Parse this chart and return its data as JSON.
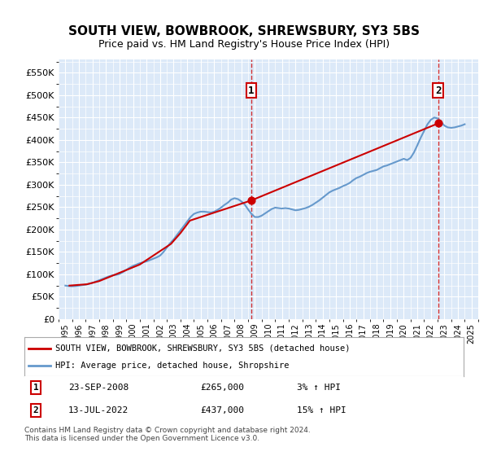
{
  "title": "SOUTH VIEW, BOWBROOK, SHREWSBURY, SY3 5BS",
  "subtitle": "Price paid vs. HM Land Registry's House Price Index (HPI)",
  "legend_line1": "SOUTH VIEW, BOWBROOK, SHREWSBURY, SY3 5BS (detached house)",
  "legend_line2": "HPI: Average price, detached house, Shropshire",
  "footer": "Contains HM Land Registry data © Crown copyright and database right 2024.\nThis data is licensed under the Open Government Licence v3.0.",
  "annotation1": {
    "label": "1",
    "date": "23-SEP-2008",
    "price": "£265,000",
    "hpi": "3% ↑ HPI",
    "x": 2008.73
  },
  "annotation2": {
    "label": "2",
    "date": "13-JUL-2022",
    "price": "£437,000",
    "hpi": "15% ↑ HPI",
    "x": 2022.54
  },
  "ylim": [
    0,
    580000
  ],
  "xlim": [
    1994.5,
    2025.5
  ],
  "yticks": [
    0,
    50000,
    100000,
    150000,
    200000,
    250000,
    300000,
    350000,
    400000,
    450000,
    500000,
    550000
  ],
  "ytick_labels": [
    "£0",
    "£50K",
    "£100K",
    "£150K",
    "£200K",
    "£250K",
    "£300K",
    "£350K",
    "£400K",
    "£450K",
    "£500K",
    "£550K"
  ],
  "xticks": [
    1995,
    1996,
    1997,
    1998,
    1999,
    2000,
    2001,
    2002,
    2003,
    2004,
    2005,
    2006,
    2007,
    2008,
    2009,
    2010,
    2011,
    2012,
    2013,
    2014,
    2015,
    2016,
    2017,
    2018,
    2019,
    2020,
    2021,
    2022,
    2023,
    2024,
    2025
  ],
  "bg_color": "#dce9f8",
  "plot_bg": "#dce9f8",
  "grid_color": "#ffffff",
  "red_line_color": "#cc0000",
  "blue_line_color": "#6699cc",
  "hpi_data": {
    "years": [
      1995.0,
      1995.25,
      1995.5,
      1995.75,
      1996.0,
      1996.25,
      1996.5,
      1996.75,
      1997.0,
      1997.25,
      1997.5,
      1997.75,
      1998.0,
      1998.25,
      1998.5,
      1998.75,
      1999.0,
      1999.25,
      1999.5,
      1999.75,
      2000.0,
      2000.25,
      2000.5,
      2000.75,
      2001.0,
      2001.25,
      2001.5,
      2001.75,
      2002.0,
      2002.25,
      2002.5,
      2002.75,
      2003.0,
      2003.25,
      2003.5,
      2003.75,
      2004.0,
      2004.25,
      2004.5,
      2004.75,
      2005.0,
      2005.25,
      2005.5,
      2005.75,
      2006.0,
      2006.25,
      2006.5,
      2006.75,
      2007.0,
      2007.25,
      2007.5,
      2007.75,
      2008.0,
      2008.25,
      2008.5,
      2008.75,
      2009.0,
      2009.25,
      2009.5,
      2009.75,
      2010.0,
      2010.25,
      2010.5,
      2010.75,
      2011.0,
      2011.25,
      2011.5,
      2011.75,
      2012.0,
      2012.25,
      2012.5,
      2012.75,
      2013.0,
      2013.25,
      2013.5,
      2013.75,
      2014.0,
      2014.25,
      2014.5,
      2014.75,
      2015.0,
      2015.25,
      2015.5,
      2015.75,
      2016.0,
      2016.25,
      2016.5,
      2016.75,
      2017.0,
      2017.25,
      2017.5,
      2017.75,
      2018.0,
      2018.25,
      2018.5,
      2018.75,
      2019.0,
      2019.25,
      2019.5,
      2019.75,
      2020.0,
      2020.25,
      2020.5,
      2020.75,
      2021.0,
      2021.25,
      2021.5,
      2021.75,
      2022.0,
      2022.25,
      2022.5,
      2022.75,
      2023.0,
      2023.25,
      2023.5,
      2023.75,
      2024.0,
      2024.25,
      2024.5
    ],
    "values": [
      75000,
      74000,
      73500,
      74000,
      75000,
      76000,
      77000,
      79000,
      81000,
      84000,
      87000,
      90000,
      93000,
      96000,
      98000,
      99000,
      101000,
      105000,
      110000,
      115000,
      119000,
      122000,
      125000,
      127000,
      129000,
      132000,
      135000,
      138000,
      142000,
      150000,
      160000,
      170000,
      178000,
      188000,
      198000,
      208000,
      218000,
      228000,
      235000,
      238000,
      240000,
      240000,
      239000,
      238000,
      240000,
      244000,
      249000,
      255000,
      260000,
      267000,
      270000,
      268000,
      263000,
      256000,
      245000,
      235000,
      228000,
      228000,
      231000,
      236000,
      241000,
      246000,
      249000,
      248000,
      247000,
      248000,
      247000,
      245000,
      243000,
      244000,
      246000,
      248000,
      251000,
      255000,
      260000,
      265000,
      271000,
      277000,
      283000,
      287000,
      290000,
      293000,
      297000,
      300000,
      304000,
      310000,
      315000,
      318000,
      322000,
      326000,
      329000,
      331000,
      333000,
      337000,
      341000,
      343000,
      346000,
      349000,
      352000,
      355000,
      358000,
      355000,
      360000,
      372000,
      388000,
      405000,
      420000,
      435000,
      445000,
      450000,
      448000,
      440000,
      432000,
      428000,
      427000,
      428000,
      430000,
      432000,
      435000
    ]
  },
  "property_data": {
    "years": [
      1995.3,
      1996.6,
      1997.5,
      2000.5,
      2002.8,
      2003.5,
      2004.2,
      2008.73,
      2022.54
    ],
    "values": [
      75000,
      78000,
      85000,
      122000,
      168000,
      192000,
      220000,
      265000,
      437000
    ]
  }
}
